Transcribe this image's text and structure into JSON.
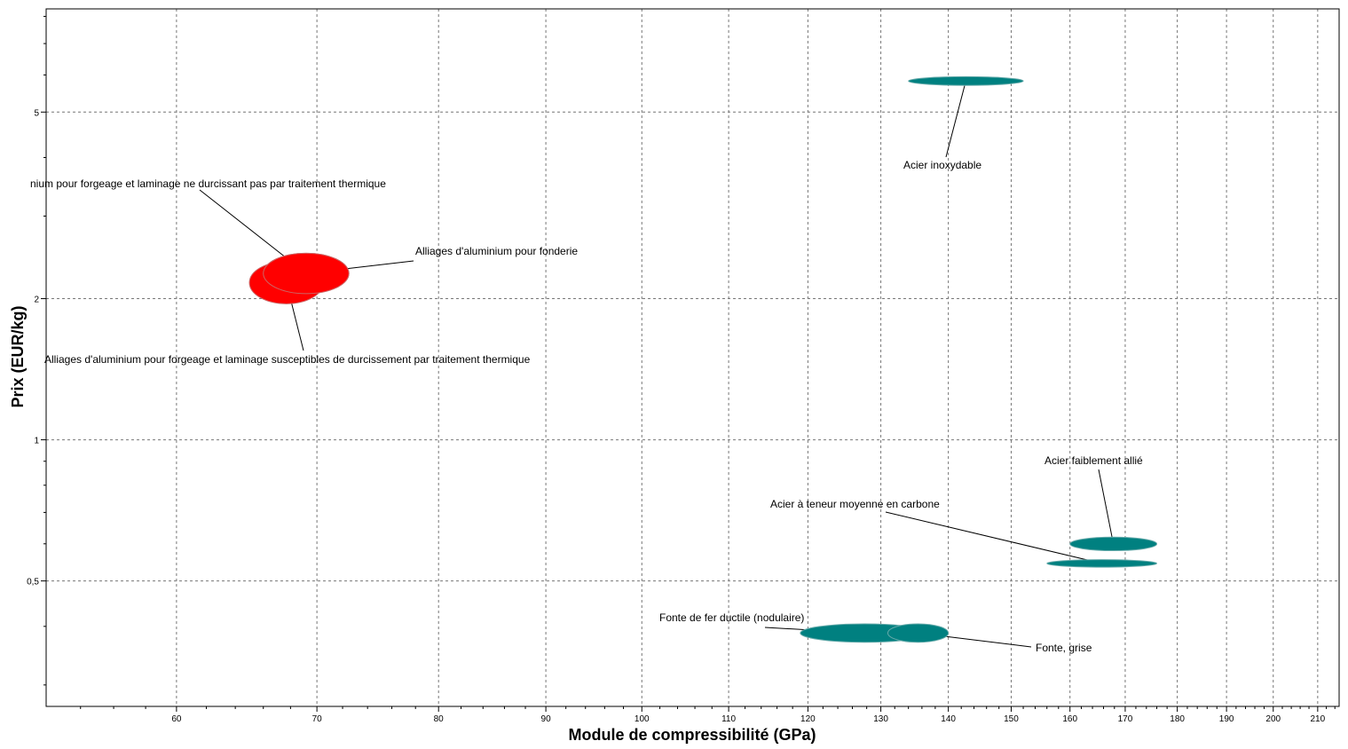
{
  "chart_data": {
    "type": "scatter",
    "xlabel": "Module de compressibilité (GPa)",
    "ylabel": "Prix (EUR/kg)",
    "x_scale": "log",
    "y_scale": "log",
    "xlim": [
      52,
      215
    ],
    "ylim": [
      0.27,
      8.3
    ],
    "x_ticks": [
      60,
      70,
      80,
      90,
      100,
      110,
      120,
      130,
      140,
      150,
      160,
      170,
      180,
      190,
      200,
      210
    ],
    "y_ticks": [
      0.5,
      1,
      2,
      5
    ],
    "y_tick_labels": [
      "0,5",
      "1",
      "2",
      "5"
    ],
    "grid": true,
    "legend": "none",
    "colors": {
      "aluminium": "#ff0000",
      "ferrous": "#008080"
    },
    "materials": [
      {
        "name": "Acier inoxydable",
        "label": "Acier inoxydable",
        "x_range": [
          134,
          152
        ],
        "y_range": [
          5.7,
          5.95
        ],
        "color": "#008080"
      },
      {
        "name": "Alliages d'aluminium pour forgeage et laminage ne durcissant pas par traitement thermique",
        "label": "nium pour forgeage et laminage ne durcissant pas par traitement thermique",
        "x_range": [
          66,
          72.5
        ],
        "y_range": [
          2.05,
          2.5
        ],
        "color": "#ff0000"
      },
      {
        "name": "Alliages d'aluminium pour fonderie",
        "label": "Alliages d'aluminium pour fonderie",
        "x_range": [
          66,
          72.5
        ],
        "y_range": [
          2.05,
          2.5
        ],
        "color": "#ff0000"
      },
      {
        "name": "Alliages d'aluminium pour forgeage et laminage susceptibles de durcissement par traitement thermique",
        "label": "Alliages d'aluminium pour forgeage et laminage susceptibles de durcissement par traitement thermique",
        "x_range": [
          65,
          70.5
        ],
        "y_range": [
          1.95,
          2.4
        ],
        "color": "#ff0000"
      },
      {
        "name": "Acier faiblement allié",
        "label": "Acier faiblement allié",
        "x_range": [
          160,
          176
        ],
        "y_range": [
          0.58,
          0.62
        ],
        "color": "#008080"
      },
      {
        "name": "Acier à teneur moyenne en carbone",
        "label": "Acier à teneur moyenne en carbone",
        "x_range": [
          156,
          176
        ],
        "y_range": [
          0.535,
          0.555
        ],
        "color": "#008080"
      },
      {
        "name": "Fonte de fer ductile (nodulaire)",
        "label": "Fonte de fer ductile (nodulaire)",
        "x_range": [
          119,
          137
        ],
        "y_range": [
          0.37,
          0.405
        ],
        "color": "#008080"
      },
      {
        "name": "Fonte, grise",
        "label": "Fonte, grise",
        "x_range": [
          131,
          140
        ],
        "y_range": [
          0.37,
          0.405
        ],
        "color": "#008080"
      }
    ]
  }
}
